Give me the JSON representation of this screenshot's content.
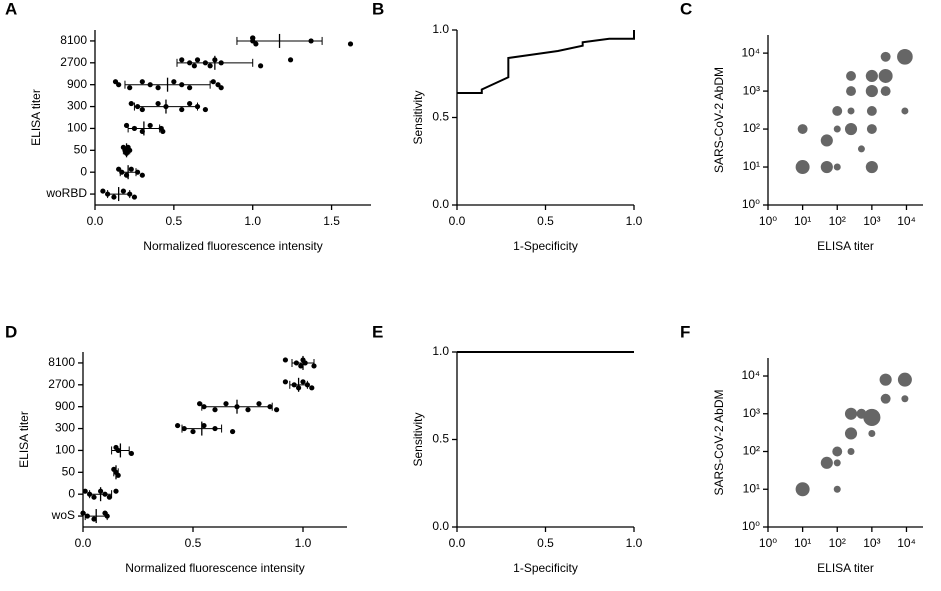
{
  "chart_data": [
    {
      "type": "dotplot",
      "label": "A",
      "ylabel": "ELISA titer",
      "xlabel": "Normalized fluorescence intensity",
      "categories": [
        "8100",
        "2700",
        "900",
        "300",
        "100",
        "50",
        "0",
        "woRBD"
      ],
      "values": [
        1.17,
        0.76,
        0.46,
        0.45,
        0.31,
        0.2,
        0.21,
        0.15
      ],
      "errors": [
        0.27,
        0.24,
        0.27,
        0.2,
        0.1,
        0.02,
        0.05,
        0.07
      ],
      "points": [
        [
          1.0,
          1.0,
          1.02,
          1.0,
          1.37,
          1.62
        ],
        [
          0.55,
          0.6,
          0.63,
          0.65,
          0.7,
          0.73,
          0.76,
          0.8,
          1.05,
          1.24
        ],
        [
          0.13,
          0.15,
          0.22,
          0.3,
          0.35,
          0.4,
          0.5,
          0.55,
          0.6,
          0.75,
          0.78,
          0.8
        ],
        [
          0.23,
          0.27,
          0.3,
          0.4,
          0.45,
          0.55,
          0.6,
          0.65,
          0.7
        ],
        [
          0.2,
          0.25,
          0.3,
          0.35,
          0.42,
          0.43
        ],
        [
          0.18,
          0.19,
          0.2,
          0.21,
          0.22
        ],
        [
          0.15,
          0.17,
          0.2,
          0.23,
          0.27,
          0.3
        ],
        [
          0.05,
          0.08,
          0.12,
          0.18,
          0.22,
          0.25
        ]
      ],
      "xlim": [
        0,
        1.75
      ],
      "xticks": [
        {
          "value": 0,
          "label": "0.0"
        },
        0.5,
        {
          "value": 1,
          "label": "1.0"
        },
        1.5
      ],
      "color": "#000000"
    },
    {
      "type": "line",
      "label": "B",
      "ylabel": "Sensitivity",
      "xlabel": "1-Specificity",
      "x": [
        0,
        0.14,
        0.14,
        0.29,
        0.29,
        0.43,
        0.57,
        0.71,
        0.71,
        0.86,
        1,
        1
      ],
      "values": [
        0.64,
        0.64,
        0.66,
        0.73,
        0.84,
        0.86,
        0.88,
        0.91,
        0.93,
        0.95,
        0.95,
        1.0
      ],
      "xlim": [
        0,
        1
      ],
      "ylim": [
        0,
        1
      ],
      "xticks": [
        {
          "value": 0,
          "label": "0.0"
        },
        0.5,
        {
          "value": 1,
          "label": "1.0"
        }
      ],
      "yticks": [
        {
          "value": 0,
          "label": "0.0"
        },
        0.5,
        {
          "value": 1,
          "label": "1.0"
        }
      ],
      "color": "#000000"
    },
    {
      "type": "bubble",
      "label": "C",
      "ylabel": "SARS-CoV-2 AbDM",
      "xlabel": "ELISA titer",
      "log": true,
      "x": [
        10,
        10,
        50,
        50,
        100,
        100,
        100,
        250,
        250,
        250,
        250,
        500,
        1000,
        1000,
        1000,
        1000,
        1000,
        2500,
        2500,
        2500,
        9000,
        9000
      ],
      "values": [
        100,
        10,
        10,
        50,
        10,
        300,
        100,
        100,
        2500,
        1000,
        300,
        30,
        10,
        100,
        300,
        1000,
        2500,
        2500,
        8000,
        1000,
        8000,
        300
      ],
      "sizes": [
        2,
        4,
        3,
        3,
        1,
        2,
        1,
        3,
        2,
        2,
        1,
        1,
        3,
        2,
        2,
        3,
        3,
        4,
        2,
        2,
        5,
        1
      ],
      "xlim": [
        1,
        30000
      ],
      "ylim": [
        1,
        30000
      ],
      "xticks": [
        {
          "value": 1,
          "label": "10⁰"
        },
        {
          "value": 10,
          "label": "10¹"
        },
        {
          "value": 100,
          "label": "10²"
        },
        {
          "value": 1000,
          "label": "10³"
        },
        {
          "value": 10000,
          "label": "10⁴"
        }
      ],
      "yticks": [
        {
          "value": 1,
          "label": "10⁰"
        },
        {
          "value": 10,
          "label": "10¹"
        },
        {
          "value": 100,
          "label": "10²"
        },
        {
          "value": 1000,
          "label": "10³"
        },
        {
          "value": 10000,
          "label": "10⁴"
        }
      ],
      "color": "#666666"
    },
    {
      "type": "dotplot",
      "label": "D",
      "ylabel": "ELISA titer",
      "xlabel": "Normalized fluorescence intensity",
      "categories": [
        "8100",
        "2700",
        "900",
        "300",
        "100",
        "50",
        "0",
        "woS"
      ],
      "values": [
        1.0,
        0.98,
        0.7,
        0.54,
        0.17,
        0.15,
        0.08,
        0.06
      ],
      "errors": [
        0.05,
        0.04,
        0.16,
        0.09,
        0.04,
        0.01,
        0.05,
        0.05
      ],
      "points": [
        [
          0.92,
          0.97,
          0.99,
          1.0,
          1.01,
          1.05
        ],
        [
          0.92,
          0.96,
          0.98,
          1.0,
          1.02,
          1.04
        ],
        [
          0.53,
          0.55,
          0.6,
          0.65,
          0.7,
          0.75,
          0.8,
          0.85,
          0.88
        ],
        [
          0.43,
          0.46,
          0.5,
          0.55,
          0.6,
          0.68
        ],
        [
          0.15,
          0.16,
          0.22
        ],
        [
          0.14,
          0.15,
          0.16
        ],
        [
          0.01,
          0.03,
          0.05,
          0.08,
          0.1,
          0.12,
          0.15
        ],
        [
          0.0,
          0.02,
          0.05,
          0.1,
          0.11
        ]
      ],
      "xlim": [
        0,
        1.2
      ],
      "xticks": [
        {
          "value": 0,
          "label": "0.0"
        },
        0.5,
        {
          "value": 1,
          "label": "1.0"
        }
      ],
      "color": "#000000"
    },
    {
      "type": "line",
      "label": "E",
      "ylabel": "Sensitivity",
      "xlabel": "1-Specificity",
      "x": [
        0,
        1
      ],
      "values": [
        1.0,
        1.0
      ],
      "xlim": [
        0,
        1
      ],
      "ylim": [
        0,
        1
      ],
      "xticks": [
        {
          "value": 0,
          "label": "0.0"
        },
        0.5,
        {
          "value": 1,
          "label": "1.0"
        }
      ],
      "yticks": [
        {
          "value": 0,
          "label": "0.0"
        },
        0.5,
        {
          "value": 1,
          "label": "1.0"
        }
      ],
      "color": "#000000"
    },
    {
      "type": "bubble",
      "label": "F",
      "ylabel": "SARS-CoV-2 AbDM",
      "xlabel": "ELISA titer",
      "log": true,
      "x": [
        10,
        50,
        100,
        100,
        100,
        250,
        250,
        250,
        500,
        1000,
        1000,
        2500,
        2500,
        9000,
        9000
      ],
      "values": [
        10,
        50,
        100,
        50,
        10,
        100,
        300,
        1000,
        1000,
        800,
        300,
        2500,
        8000,
        8000,
        2500
      ],
      "sizes": [
        4,
        3,
        2,
        1,
        1,
        1,
        3,
        3,
        2,
        6,
        1,
        2,
        3,
        4,
        1
      ],
      "xlim": [
        1,
        30000
      ],
      "ylim": [
        1,
        30000
      ],
      "xticks": [
        {
          "value": 1,
          "label": "10⁰"
        },
        {
          "value": 10,
          "label": "10¹"
        },
        {
          "value": 100,
          "label": "10²"
        },
        {
          "value": 1000,
          "label": "10³"
        },
        {
          "value": 10000,
          "label": "10⁴"
        }
      ],
      "yticks": [
        {
          "value": 1,
          "label": "10⁰"
        },
        {
          "value": 10,
          "label": "10¹"
        },
        {
          "value": 100,
          "label": "10²"
        },
        {
          "value": 1000,
          "label": "10³"
        },
        {
          "value": 10000,
          "label": "10⁴"
        }
      ],
      "color": "#666666"
    }
  ]
}
